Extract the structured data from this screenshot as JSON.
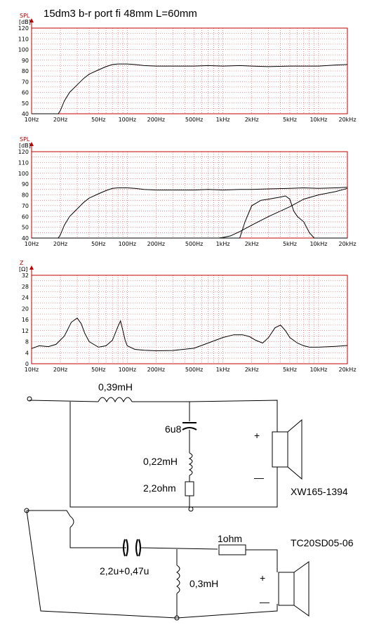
{
  "chart_data": [
    {
      "type": "line",
      "title": "15dm3 b-r port fi 48mm L=60mm",
      "ylabel": "SPL",
      "yunit": "[dB]",
      "xscale": "log",
      "xlim": [
        10,
        20000
      ],
      "ylim": [
        40,
        120
      ],
      "grid": true,
      "xticks": [
        10,
        20,
        50,
        100,
        200,
        500,
        1000,
        2000,
        5000,
        10000,
        20000
      ],
      "xticklabels": [
        "10Hz",
        "20Hz",
        "50Hz",
        "100Hz",
        "200Hz",
        "500Hz",
        "1kHz",
        "2kHz",
        "5kHz",
        "10kHz",
        "20kHz"
      ],
      "yticks": [
        40,
        50,
        60,
        70,
        80,
        90,
        100,
        110,
        120
      ],
      "yticklabels": [
        "40",
        "50",
        "60",
        "70",
        "80",
        "90",
        "100",
        "110",
        "120"
      ],
      "series": [
        {
          "x": [
            10,
            19,
            20,
            22,
            25,
            30,
            35,
            40,
            50,
            60,
            70,
            80,
            90,
            100,
            120,
            150,
            200,
            300,
            500,
            700,
            1000,
            1500,
            2000,
            3000,
            5000,
            7000,
            10000,
            15000,
            20000
          ],
          "y": [
            40,
            40,
            43,
            52,
            60,
            67,
            73,
            77,
            81,
            84,
            86,
            86.5,
            86.5,
            86.5,
            86,
            85,
            84.5,
            84.5,
            84.5,
            85,
            84.5,
            85,
            84.5,
            84,
            84.5,
            84.5,
            84.5,
            85.5,
            86
          ]
        }
      ]
    },
    {
      "type": "line",
      "ylabel": "SPL",
      "yunit": "[dB]",
      "xscale": "log",
      "xlim": [
        10,
        20000
      ],
      "ylim": [
        40,
        120
      ],
      "grid": true,
      "xticks": [
        10,
        20,
        50,
        100,
        200,
        500,
        1000,
        2000,
        5000,
        10000,
        20000
      ],
      "xticklabels": [
        "10Hz",
        "20Hz",
        "50Hz",
        "100Hz",
        "200Hz",
        "500Hz",
        "1kHz",
        "2kHz",
        "5kHz",
        "10kHz",
        "20kHz"
      ],
      "yticks": [
        40,
        50,
        60,
        70,
        80,
        90,
        100,
        110,
        120
      ],
      "yticklabels": [
        "40",
        "50",
        "60",
        "70",
        "80",
        "90",
        "100",
        "110",
        "120"
      ],
      "series": [
        {
          "x": [
            10,
            19,
            20,
            22,
            25,
            30,
            35,
            40,
            50,
            60,
            70,
            80,
            90,
            100,
            120,
            150,
            200,
            300,
            500,
            700,
            1000,
            1500,
            2000,
            3000,
            5000,
            7000,
            10000,
            15000,
            20000
          ],
          "y": [
            40,
            40,
            43,
            52,
            60,
            67,
            73,
            77,
            81,
            84,
            86,
            86.5,
            86.5,
            86.5,
            86,
            85,
            84.5,
            84.5,
            84.5,
            85,
            84.5,
            85,
            85,
            85.5,
            86,
            86.5,
            86,
            86.5,
            87
          ]
        },
        {
          "x": [
            10,
            100,
            200,
            400,
            600,
            800,
            900,
            1000,
            1200,
            1500,
            2000,
            3000,
            5000,
            7000,
            10000,
            15000,
            20000
          ],
          "y": [
            40,
            40,
            40,
            40,
            40,
            40,
            40,
            40.5,
            42,
            46,
            52,
            60,
            69,
            76,
            80,
            83,
            86
          ]
        },
        {
          "x": [
            10,
            1500,
            1700,
            2000,
            2500,
            3000,
            4000,
            4500,
            5000,
            5500,
            6000,
            7000,
            8000,
            9000,
            10000,
            20000
          ],
          "y": [
            40,
            40,
            55,
            70,
            75,
            76,
            78,
            79,
            76,
            65,
            60,
            55,
            45,
            40,
            40,
            40
          ]
        }
      ]
    },
    {
      "type": "line",
      "ylabel": "Z",
      "yunit": "[Ω]",
      "xscale": "log",
      "xlim": [
        10,
        20000
      ],
      "ylim": [
        0,
        32
      ],
      "grid": true,
      "xticks": [
        10,
        20,
        50,
        100,
        200,
        500,
        1000,
        2000,
        5000,
        10000,
        20000
      ],
      "xticklabels": [
        "10Hz",
        "20Hz",
        "50Hz",
        "100Hz",
        "200Hz",
        "500Hz",
        "1kHz",
        "2kHz",
        "5kHz",
        "10kHz",
        "20kHz"
      ],
      "yticks": [
        0,
        4,
        8,
        12,
        16,
        20,
        24,
        28,
        32
      ],
      "yticklabels": [
        "0",
        "4",
        "8",
        "12",
        "16",
        "20",
        "24",
        "28",
        "32"
      ],
      "series": [
        {
          "x": [
            10,
            12,
            15,
            18,
            22,
            26,
            30,
            33,
            36,
            40,
            50,
            60,
            70,
            80,
            85,
            90,
            95,
            100,
            120,
            150,
            200,
            300,
            500,
            700,
            1000,
            1300,
            1600,
            1900,
            2200,
            2600,
            3000,
            3500,
            4000,
            4500,
            5000,
            6000,
            7000,
            8000,
            10000,
            15000,
            20000
          ],
          "y": [
            5.5,
            6.5,
            6.2,
            7,
            10,
            15,
            16.5,
            14.5,
            11,
            8,
            6,
            6.5,
            8.5,
            13.5,
            15.5,
            12,
            8.5,
            6.5,
            5.2,
            4.9,
            4.7,
            4.8,
            5.6,
            7.5,
            9.5,
            10.5,
            10.5,
            9.8,
            8.5,
            7.5,
            9.5,
            13,
            14,
            12,
            9.5,
            7.5,
            6.5,
            6,
            6,
            6.3,
            6.6
          ]
        }
      ]
    }
  ],
  "schematic": {
    "woofer_inductor": "0,39mH",
    "woofer_capacitor": "6u8",
    "woofer_notch_inductor": "0,22mH",
    "woofer_resistor": "2,2ohm",
    "woofer_model": "XW165-1394",
    "tweeter_capacitors": "2,2u+0,47u",
    "tweeter_resistor": "1ohm",
    "tweeter_inductor": "0,3mH",
    "tweeter_model": "TC20SD05-06",
    "plus_sign": "+",
    "minus_sign": "—"
  }
}
